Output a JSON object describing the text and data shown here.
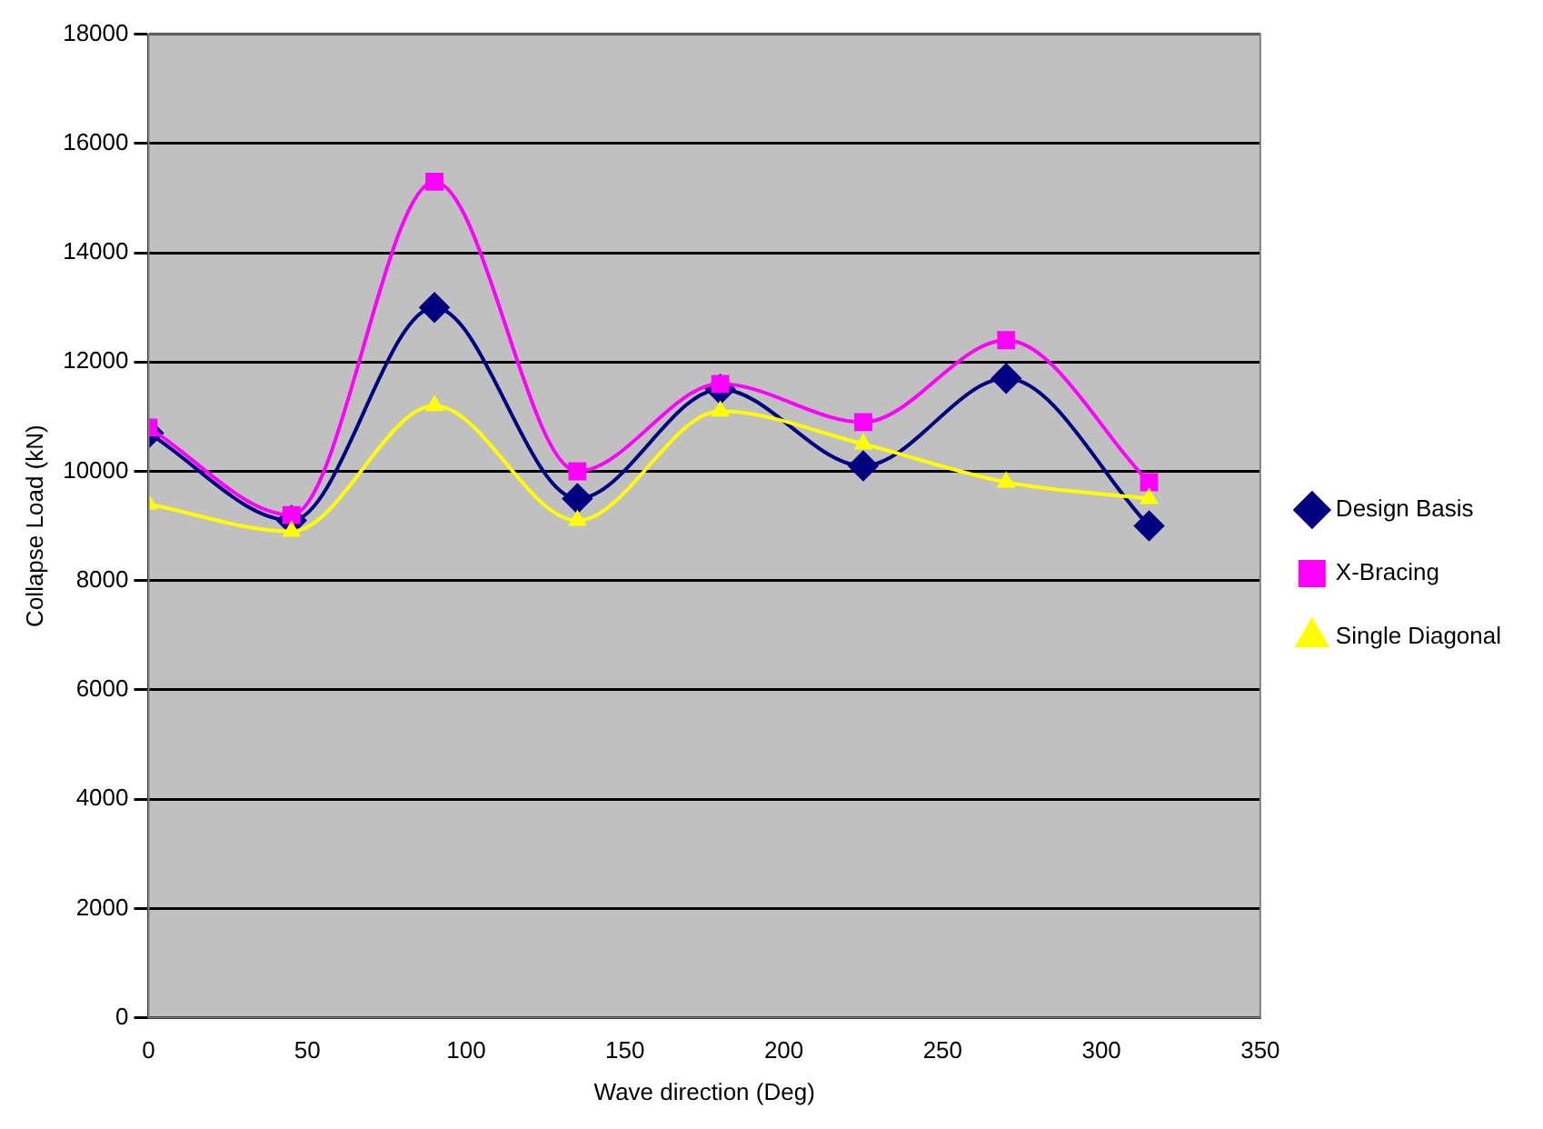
{
  "chart_data": {
    "type": "line",
    "xlabel": "Wave direction (Deg)",
    "ylabel": "Collapse Load (kN)",
    "x": [
      0,
      45,
      90,
      135,
      180,
      225,
      270,
      315
    ],
    "series": [
      {
        "name": "Design Basis",
        "color": "#000080",
        "marker": "diamond",
        "values": [
          10700,
          9100,
          13000,
          9500,
          11500,
          10100,
          11700,
          9000
        ]
      },
      {
        "name": "X-Bracing",
        "color": "#ff00ff",
        "marker": "square",
        "values": [
          10800,
          9200,
          15300,
          10000,
          11600,
          10900,
          12400,
          9800
        ]
      },
      {
        "name": "Single Diagonal",
        "color": "#ffff00",
        "marker": "triangle",
        "values": [
          9400,
          8900,
          11200,
          9100,
          11100,
          10500,
          9800,
          9500
        ]
      }
    ],
    "xlim": [
      0,
      350
    ],
    "xticks": [
      0,
      50,
      100,
      150,
      200,
      250,
      300,
      350
    ],
    "ylim": [
      0,
      18000
    ],
    "yticks": [
      0,
      2000,
      4000,
      6000,
      8000,
      10000,
      12000,
      14000,
      16000,
      18000
    ],
    "grid": "y",
    "legend": "right",
    "line_style": "solid"
  }
}
